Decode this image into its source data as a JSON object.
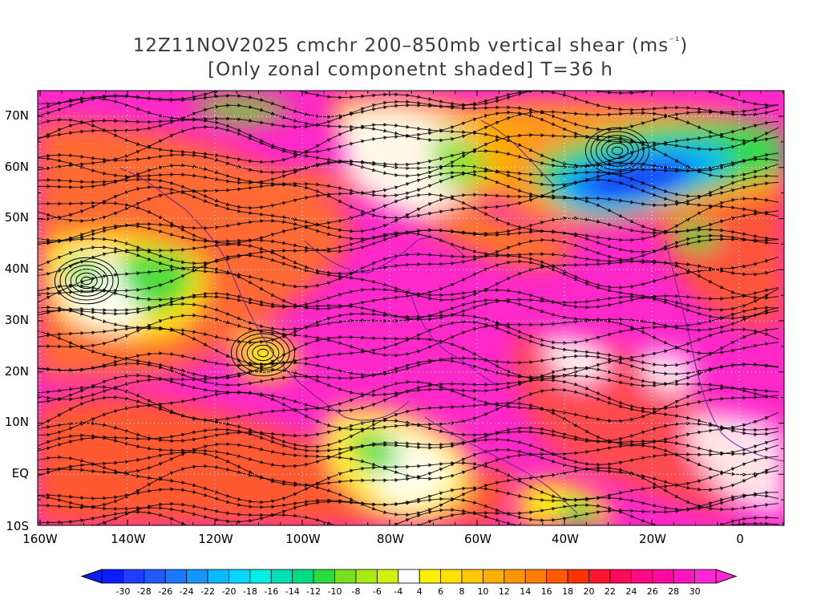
{
  "title": {
    "line1_pre": "12Z11NOV2025 cmchr 200–850mb vertical shear (ms",
    "line1_sup": "⁻¹",
    "line1_post": ")",
    "line2": "[Only zonal componetnt shaded] T=36 h"
  },
  "map": {
    "lat_labels": [
      "70N",
      "60N",
      "50N",
      "40N",
      "30N",
      "20N",
      "10N",
      "EQ",
      "10S"
    ],
    "lon_labels": [
      "160W",
      "140W",
      "120W",
      "100W",
      "80W",
      "60W",
      "40W",
      "20W",
      "0"
    ],
    "lon_range": [
      -160,
      10
    ],
    "lat_range": [
      -10,
      75
    ],
    "graticule_style": "dotted"
  },
  "colorbar": {
    "labels": [
      "-30",
      "-28",
      "-26",
      "-24",
      "-22",
      "-20",
      "-18",
      "-16",
      "-14",
      "-12",
      "-10",
      "-8",
      "-6",
      "-4",
      "4",
      "6",
      "8",
      "10",
      "12",
      "14",
      "16",
      "18",
      "20",
      "22",
      "24",
      "26",
      "28",
      "30"
    ],
    "colors": [
      "#0a1eff",
      "#1f3cff",
      "#1e5aff",
      "#1a78ff",
      "#1496ff",
      "#0abaff",
      "#06d6ff",
      "#00f0e6",
      "#00e0b4",
      "#00dc82",
      "#28dc3c",
      "#78e01e",
      "#aaea14",
      "#d2f00a",
      "#ffffff",
      "#fff000",
      "#ffe100",
      "#ffc800",
      "#ffaf00",
      "#ff9600",
      "#ff7d00",
      "#ff5a00",
      "#ff3200",
      "#ff1430",
      "#ff0a5a",
      "#ff0a82",
      "#ff0aa0",
      "#ff14be",
      "#ff28d2"
    ]
  },
  "icons": {
    "streamlines": "streamline-arrows",
    "coastlines": "coastline-outline"
  }
}
